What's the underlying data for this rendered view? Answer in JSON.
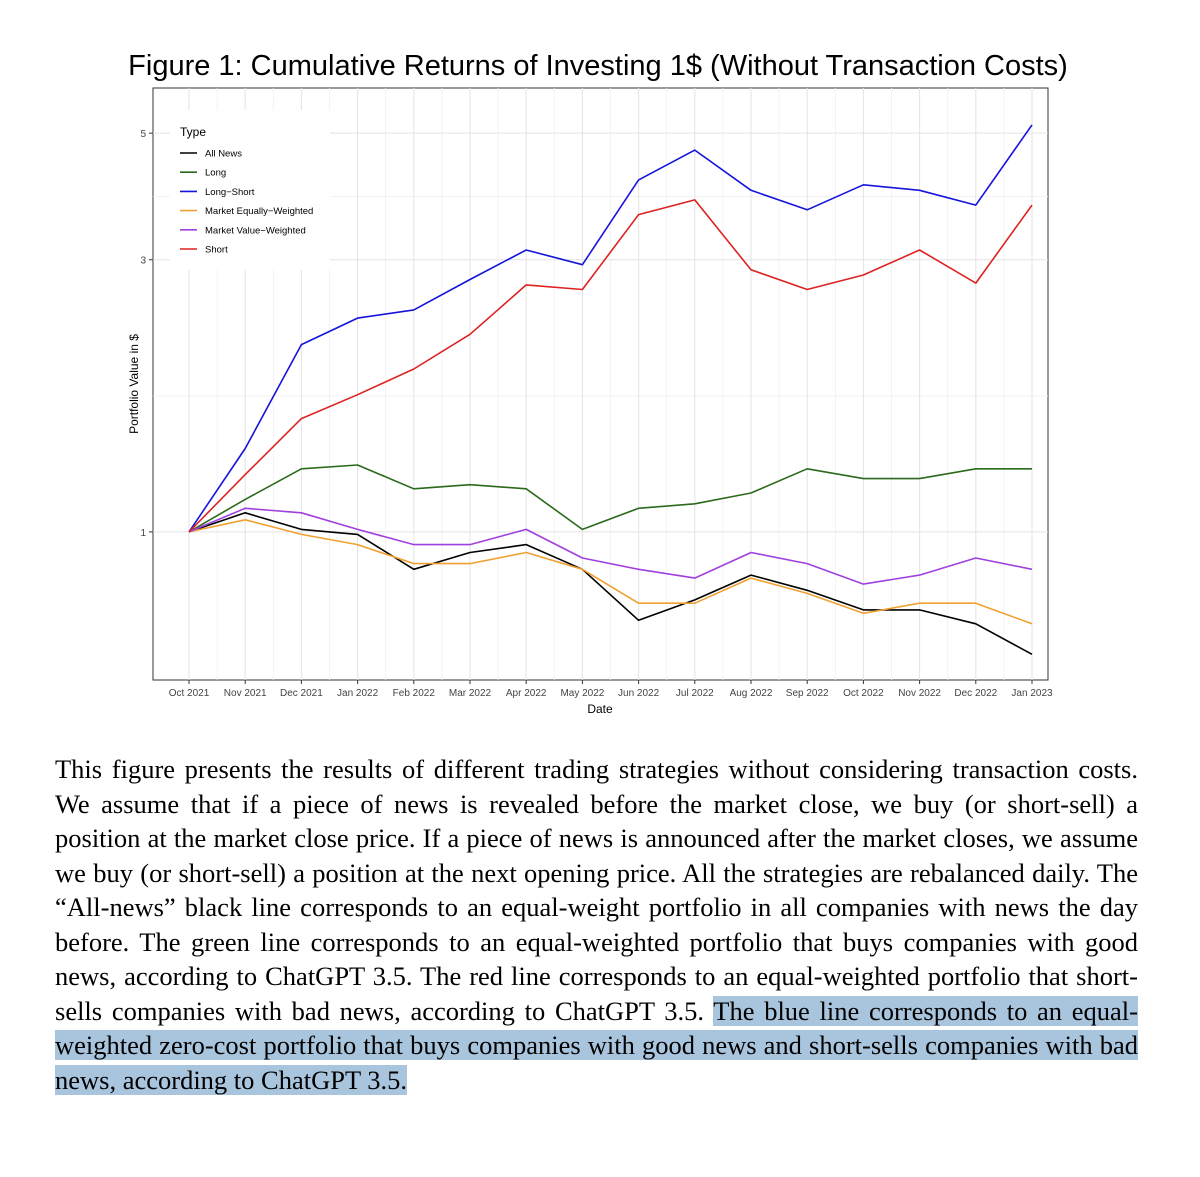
{
  "chart_data": {
    "type": "line",
    "title": "Figure 1: Cumulative Returns of Investing 1$ (Without Transaction Costs)",
    "x_label": "Date",
    "y_label": "Portfolio Value in $",
    "legend_title": "Type",
    "legend_position": "top-left",
    "grid": true,
    "log_y": true,
    "x": [
      "Oct 2021",
      "Nov 2021",
      "Dec 2021",
      "Jan 2022",
      "Feb 2022",
      "Mar 2022",
      "Apr 2022",
      "May 2022",
      "Jun 2022",
      "Jul 2022",
      "Aug 2022",
      "Sep 2022",
      "Oct 2022",
      "Nov 2022",
      "Dec 2022",
      "Jan 2023"
    ],
    "ylim": [
      0.55,
      6
    ],
    "yticks": [
      1,
      3,
      5
    ],
    "series": [
      {
        "name": "All News",
        "color": "#000000",
        "values": [
          1,
          1.08,
          1.01,
          0.99,
          0.86,
          0.92,
          0.95,
          0.86,
          0.7,
          0.76,
          0.84,
          0.79,
          0.73,
          0.73,
          0.69,
          0.61
        ]
      },
      {
        "name": "Long",
        "color": "#2b6a1c",
        "values": [
          1,
          1.14,
          1.29,
          1.31,
          1.19,
          1.21,
          1.19,
          1.01,
          1.1,
          1.12,
          1.17,
          1.29,
          1.24,
          1.24,
          1.29,
          1.29
        ]
      },
      {
        "name": "Long−Short",
        "color": "#1414dc",
        "values": [
          1,
          1.4,
          2.13,
          2.37,
          2.45,
          2.77,
          3.12,
          2.94,
          4.14,
          4.67,
          3.97,
          3.67,
          4.06,
          3.97,
          3.74,
          5.17
        ]
      },
      {
        "name": "Market Equally−Weighted",
        "color": "#f0a030",
        "values": [
          1,
          1.05,
          0.99,
          0.95,
          0.88,
          0.88,
          0.92,
          0.86,
          0.75,
          0.75,
          0.83,
          0.78,
          0.72,
          0.75,
          0.75,
          0.69
        ]
      },
      {
        "name": "Market Value−Weighted",
        "color": "#a040e0",
        "values": [
          1,
          1.1,
          1.08,
          1.01,
          0.95,
          0.95,
          1.01,
          0.9,
          0.86,
          0.83,
          0.92,
          0.88,
          0.81,
          0.84,
          0.9,
          0.86
        ]
      },
      {
        "name": "Short",
        "color": "#dd2222",
        "values": [
          1,
          1.26,
          1.58,
          1.74,
          1.93,
          2.22,
          2.71,
          2.66,
          3.6,
          3.82,
          2.88,
          2.66,
          2.82,
          3.12,
          2.73,
          3.74
        ]
      }
    ]
  },
  "caption": {
    "text": "This figure presents the results of different trading strategies without considering transaction costs. We assume that if a piece of news is revealed before the market close, we buy (or short-sell) a position at the market close price. If a piece of news is announced after the market closes, we assume we buy (or short-sell) a position at the next opening price. All the strategies are rebalanced daily. The “All-news” black line corresponds to an equal-weight portfolio in all companies with news the day before. The green line corresponds to an equal-weighted portfolio that buys companies with good news, according to ChatGPT 3.5. The red line corresponds to an equal-weighted portfolio that short-sells companies with bad news, according to ChatGPT 3.5.",
    "highlighted": "The blue line corresponds to an equal-weighted zero-cost portfolio that buys companies with good news and short-sells companies with bad news, according to ChatGPT 3.5."
  }
}
